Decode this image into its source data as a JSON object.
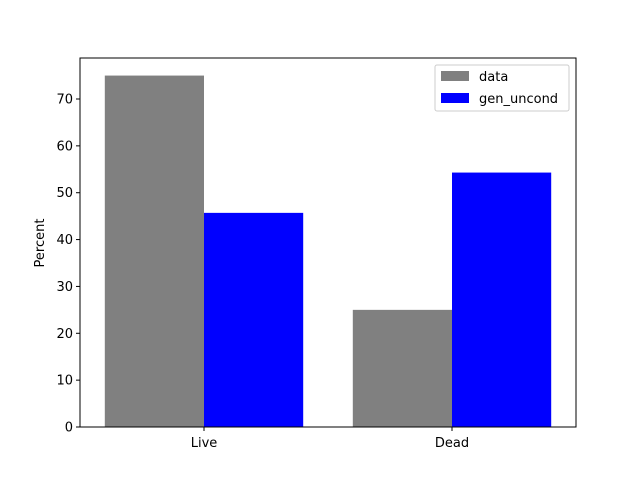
{
  "chart_data": {
    "type": "bar",
    "title": "",
    "xlabel": "",
    "ylabel": "Percent",
    "categories": [
      "Live",
      "Dead"
    ],
    "series": [
      {
        "name": "data",
        "values": [
          75.0,
          25.0
        ],
        "color": "#808080"
      },
      {
        "name": "gen_uncond",
        "values": [
          45.7,
          54.3
        ],
        "color": "#0000ff"
      }
    ],
    "ylim": [
      0,
      78.75
    ],
    "yticks": [
      0,
      10,
      20,
      30,
      40,
      50,
      60,
      70
    ],
    "grid": false,
    "legend_position": "top-right"
  }
}
